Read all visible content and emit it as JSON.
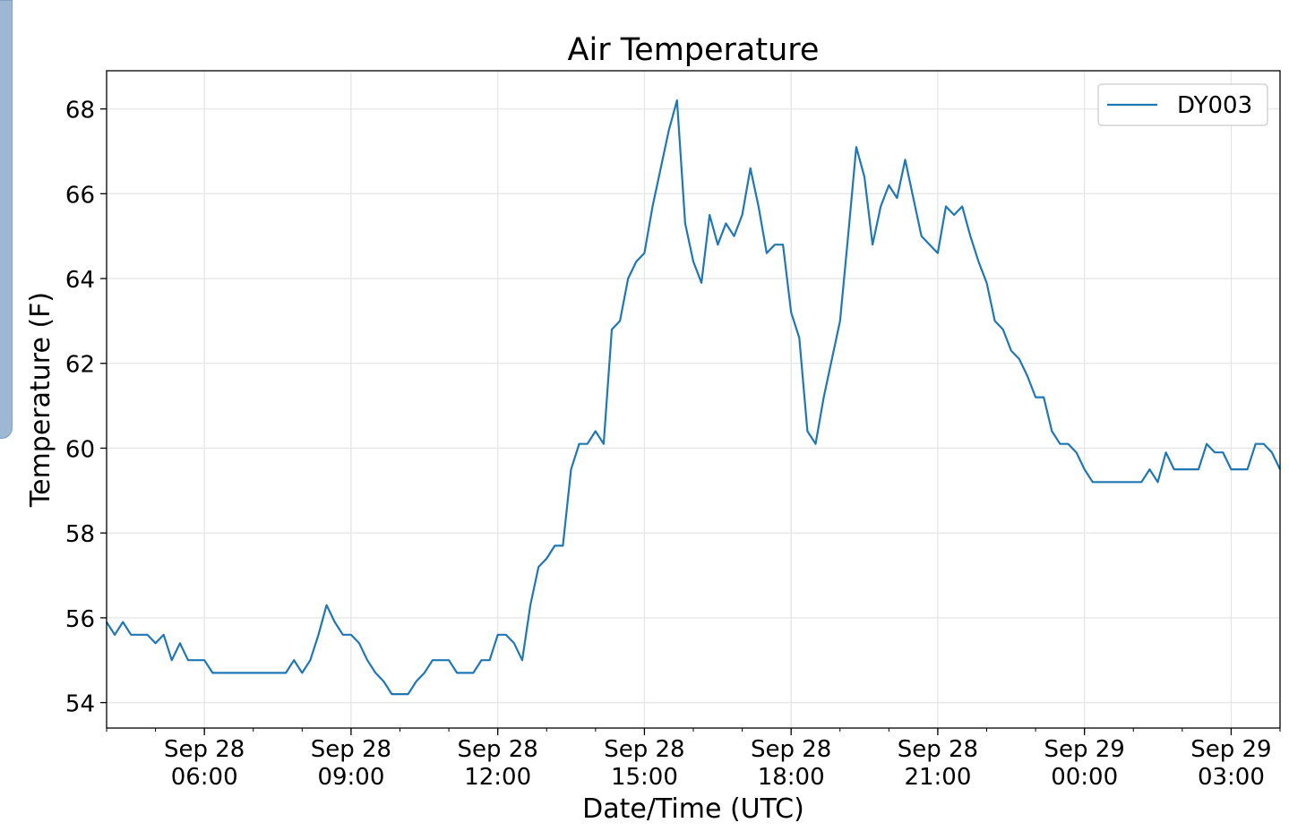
{
  "chart_data": {
    "type": "line",
    "title": "Air Temperature",
    "xlabel": "Date/Time (UTC)",
    "ylabel": "Temperature (F)",
    "legend": "top-right",
    "grid": true,
    "xlim": [
      "2019-09-28T04:00",
      "2019-09-29T04:00"
    ],
    "ylim": [
      53.4,
      68.9
    ],
    "x_tick_labels": [
      {
        "x": "2019-09-28T06:00",
        "line1": "Sep 28",
        "line2": "06:00"
      },
      {
        "x": "2019-09-28T09:00",
        "line1": "Sep 28",
        "line2": "09:00"
      },
      {
        "x": "2019-09-28T12:00",
        "line1": "Sep 28",
        "line2": "12:00"
      },
      {
        "x": "2019-09-28T15:00",
        "line1": "Sep 28",
        "line2": "15:00"
      },
      {
        "x": "2019-09-28T18:00",
        "line1": "Sep 28",
        "line2": "18:00"
      },
      {
        "x": "2019-09-28T21:00",
        "line1": "Sep 28",
        "line2": "21:00"
      },
      {
        "x": "2019-09-29T00:00",
        "line1": "Sep 29",
        "line2": "00:00"
      },
      {
        "x": "2019-09-29T03:00",
        "line1": "Sep 29",
        "line2": "03:00"
      }
    ],
    "y_ticks": [
      54,
      56,
      58,
      60,
      62,
      64,
      66,
      68
    ],
    "series": [
      {
        "name": "DY003",
        "color": "#1f77b4",
        "x": [
          "2019-09-28T04:00",
          "2019-09-28T04:10",
          "2019-09-28T04:20",
          "2019-09-28T04:30",
          "2019-09-28T04:40",
          "2019-09-28T04:50",
          "2019-09-28T05:00",
          "2019-09-28T05:10",
          "2019-09-28T05:20",
          "2019-09-28T05:30",
          "2019-09-28T05:40",
          "2019-09-28T05:50",
          "2019-09-28T06:00",
          "2019-09-28T06:10",
          "2019-09-28T06:20",
          "2019-09-28T06:30",
          "2019-09-28T06:40",
          "2019-09-28T06:50",
          "2019-09-28T07:00",
          "2019-09-28T07:10",
          "2019-09-28T07:20",
          "2019-09-28T07:30",
          "2019-09-28T07:40",
          "2019-09-28T07:50",
          "2019-09-28T08:00",
          "2019-09-28T08:10",
          "2019-09-28T08:20",
          "2019-09-28T08:30",
          "2019-09-28T08:40",
          "2019-09-28T08:50",
          "2019-09-28T09:00",
          "2019-09-28T09:10",
          "2019-09-28T09:20",
          "2019-09-28T09:30",
          "2019-09-28T09:40",
          "2019-09-28T09:50",
          "2019-09-28T10:00",
          "2019-09-28T10:10",
          "2019-09-28T10:20",
          "2019-09-28T10:30",
          "2019-09-28T10:40",
          "2019-09-28T10:50",
          "2019-09-28T11:00",
          "2019-09-28T11:10",
          "2019-09-28T11:20",
          "2019-09-28T11:30",
          "2019-09-28T11:40",
          "2019-09-28T11:50",
          "2019-09-28T12:00",
          "2019-09-28T12:10",
          "2019-09-28T12:20",
          "2019-09-28T12:30",
          "2019-09-28T12:40",
          "2019-09-28T12:50",
          "2019-09-28T13:00",
          "2019-09-28T13:10",
          "2019-09-28T13:20",
          "2019-09-28T13:30",
          "2019-09-28T13:40",
          "2019-09-28T13:50",
          "2019-09-28T14:00",
          "2019-09-28T14:10",
          "2019-09-28T14:20",
          "2019-09-28T14:30",
          "2019-09-28T14:40",
          "2019-09-28T14:50",
          "2019-09-28T15:00",
          "2019-09-28T15:10",
          "2019-09-28T15:20",
          "2019-09-28T15:30",
          "2019-09-28T15:40",
          "2019-09-28T15:50",
          "2019-09-28T16:00",
          "2019-09-28T16:10",
          "2019-09-28T16:20",
          "2019-09-28T16:30",
          "2019-09-28T16:40",
          "2019-09-28T16:50",
          "2019-09-28T17:00",
          "2019-09-28T17:10",
          "2019-09-28T17:20",
          "2019-09-28T17:30",
          "2019-09-28T17:40",
          "2019-09-28T17:50",
          "2019-09-28T18:00",
          "2019-09-28T18:10",
          "2019-09-28T18:20",
          "2019-09-28T18:30",
          "2019-09-28T18:40",
          "2019-09-28T18:50",
          "2019-09-28T19:00",
          "2019-09-28T19:10",
          "2019-09-28T19:20",
          "2019-09-28T19:30",
          "2019-09-28T19:40",
          "2019-09-28T19:50",
          "2019-09-28T20:00",
          "2019-09-28T20:10",
          "2019-09-28T20:20",
          "2019-09-28T20:30",
          "2019-09-28T20:40",
          "2019-09-28T20:50",
          "2019-09-28T21:00",
          "2019-09-28T21:10",
          "2019-09-28T21:20",
          "2019-09-28T21:30",
          "2019-09-28T21:40",
          "2019-09-28T21:50",
          "2019-09-28T22:00",
          "2019-09-28T22:10",
          "2019-09-28T22:20",
          "2019-09-28T22:30",
          "2019-09-28T22:40",
          "2019-09-28T22:50",
          "2019-09-28T23:00",
          "2019-09-28T23:10",
          "2019-09-28T23:20",
          "2019-09-28T23:30",
          "2019-09-28T23:40",
          "2019-09-28T23:50",
          "2019-09-29T00:00",
          "2019-09-29T00:10",
          "2019-09-29T00:20",
          "2019-09-29T00:30",
          "2019-09-29T00:40",
          "2019-09-29T00:50",
          "2019-09-29T01:00",
          "2019-09-29T01:10",
          "2019-09-29T01:20",
          "2019-09-29T01:30",
          "2019-09-29T01:40",
          "2019-09-29T01:50",
          "2019-09-29T02:00",
          "2019-09-29T02:10",
          "2019-09-29T02:20",
          "2019-09-29T02:30",
          "2019-09-29T02:40",
          "2019-09-29T02:50",
          "2019-09-29T03:00",
          "2019-09-29T03:10",
          "2019-09-29T03:20",
          "2019-09-29T03:30",
          "2019-09-29T03:40",
          "2019-09-29T03:50",
          "2019-09-29T04:00"
        ],
        "y": [
          55.9,
          55.6,
          55.9,
          55.6,
          55.6,
          55.6,
          55.4,
          55.6,
          55.0,
          55.4,
          55.0,
          55.0,
          55.0,
          54.7,
          54.7,
          54.7,
          54.7,
          54.7,
          54.7,
          54.7,
          54.7,
          54.7,
          54.7,
          55.0,
          54.7,
          55.0,
          55.6,
          56.3,
          55.9,
          55.6,
          55.6,
          55.4,
          55.0,
          54.7,
          54.5,
          54.2,
          54.2,
          54.2,
          54.5,
          54.7,
          55.0,
          55.0,
          55.0,
          54.7,
          54.7,
          54.7,
          55.0,
          55.0,
          55.6,
          55.6,
          55.4,
          55.0,
          56.3,
          57.2,
          57.4,
          57.7,
          57.7,
          59.5,
          60.1,
          60.1,
          60.4,
          60.1,
          62.8,
          63.0,
          64.0,
          64.4,
          64.6,
          65.7,
          66.6,
          67.5,
          68.2,
          65.3,
          64.4,
          63.9,
          65.5,
          64.8,
          65.3,
          65.0,
          65.5,
          66.6,
          65.7,
          64.6,
          64.8,
          64.8,
          63.2,
          62.6,
          60.4,
          60.1,
          61.2,
          62.1,
          63.0,
          65.0,
          67.1,
          66.4,
          64.8,
          65.7,
          66.2,
          65.9,
          66.8,
          65.9,
          65.0,
          64.8,
          64.6,
          65.7,
          65.5,
          65.7,
          65.0,
          64.4,
          63.9,
          63.0,
          62.8,
          62.3,
          62.1,
          61.7,
          61.2,
          61.2,
          60.4,
          60.1,
          60.1,
          59.9,
          59.5,
          59.2,
          59.2,
          59.2,
          59.2,
          59.2,
          59.2,
          59.2,
          59.5,
          59.2,
          59.9,
          59.5,
          59.5,
          59.5,
          59.5,
          60.1,
          59.9,
          59.9,
          59.5,
          59.5,
          59.5,
          60.1,
          60.1,
          59.9,
          59.5
        ]
      }
    ]
  }
}
